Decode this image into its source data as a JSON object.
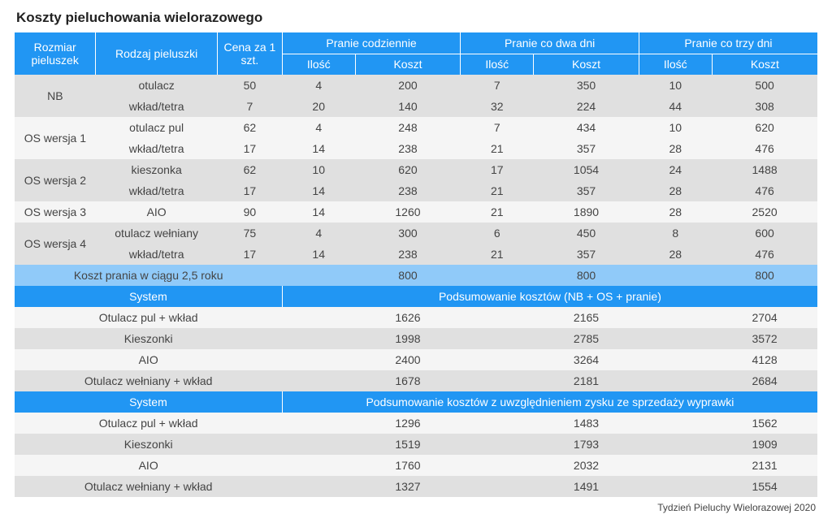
{
  "title": "Koszty pieluchowania wielorazowego",
  "footer": "Tydzień Pieluchy Wielorazowej 2020",
  "colors": {
    "header_dark": "#2196f3",
    "header_light": "#90caf9",
    "row_even": "#e0e0e0",
    "row_odd": "#f5f5f5",
    "text": "#444444"
  },
  "headers": {
    "rozmiar": "Rozmiar pieluszek",
    "rodzaj": "Rodzaj pieluszki",
    "cena": "Cena za 1 szt.",
    "pranie_codz": "Pranie codziennie",
    "pranie_2dni": "Pranie co dwa dni",
    "pranie_3dni": "Pranie co trzy dni",
    "ilosc": "Ilość",
    "koszt": "Koszt"
  },
  "data_rows": [
    {
      "size": "NB",
      "type": "otulacz",
      "price": "50",
      "v": [
        "4",
        "200",
        "7",
        "350",
        "10",
        "500"
      ]
    },
    {
      "size": "",
      "type": "wkład/tetra",
      "price": "7",
      "v": [
        "20",
        "140",
        "32",
        "224",
        "44",
        "308"
      ]
    },
    {
      "size": "OS wersja 1",
      "type": "otulacz pul",
      "price": "62",
      "v": [
        "4",
        "248",
        "7",
        "434",
        "10",
        "620"
      ]
    },
    {
      "size": "",
      "type": "wkład/tetra",
      "price": "17",
      "v": [
        "14",
        "238",
        "21",
        "357",
        "28",
        "476"
      ]
    },
    {
      "size": "OS wersja 2",
      "type": "kieszonka",
      "price": "62",
      "v": [
        "10",
        "620",
        "17",
        "1054",
        "24",
        "1488"
      ]
    },
    {
      "size": "",
      "type": "wkład/tetra",
      "price": "17",
      "v": [
        "14",
        "238",
        "21",
        "357",
        "28",
        "476"
      ]
    },
    {
      "size": "OS wersja 3",
      "type": "AIO",
      "price": "90",
      "v": [
        "14",
        "1260",
        "21",
        "1890",
        "28",
        "2520"
      ]
    },
    {
      "size": "OS wersja 4",
      "type": "otulacz wełniany",
      "price": "75",
      "v": [
        "4",
        "300",
        "6",
        "450",
        "8",
        "600"
      ]
    },
    {
      "size": "",
      "type": "wkład/tetra",
      "price": "17",
      "v": [
        "14",
        "238",
        "21",
        "357",
        "28",
        "476"
      ]
    }
  ],
  "washing_cost": {
    "label": "Koszt prania w ciągu 2,5 roku",
    "v": [
      "800",
      "800",
      "800"
    ]
  },
  "summary1": {
    "system": "System",
    "desc": "Podsumowanie kosztów (NB + OS + pranie)",
    "rows": [
      {
        "label": "Otulacz pul + wkład",
        "v": [
          "1626",
          "2165",
          "2704"
        ]
      },
      {
        "label": "Kieszonki",
        "v": [
          "1998",
          "2785",
          "3572"
        ]
      },
      {
        "label": "AIO",
        "v": [
          "2400",
          "3264",
          "4128"
        ]
      },
      {
        "label": "Otulacz wełniany + wkład",
        "v": [
          "1678",
          "2181",
          "2684"
        ]
      }
    ]
  },
  "summary2": {
    "system": "System",
    "desc": "Podsumowanie kosztów z uwzględnieniem zysku ze sprzedaży wyprawki",
    "rows": [
      {
        "label": "Otulacz pul + wkład",
        "v": [
          "1296",
          "1483",
          "1562"
        ]
      },
      {
        "label": "Kieszonki",
        "v": [
          "1519",
          "1793",
          "1909"
        ]
      },
      {
        "label": "AIO",
        "v": [
          "1760",
          "2032",
          "2131"
        ]
      },
      {
        "label": "Otulacz wełniany + wkład",
        "v": [
          "1327",
          "1491",
          "1554"
        ]
      }
    ]
  }
}
